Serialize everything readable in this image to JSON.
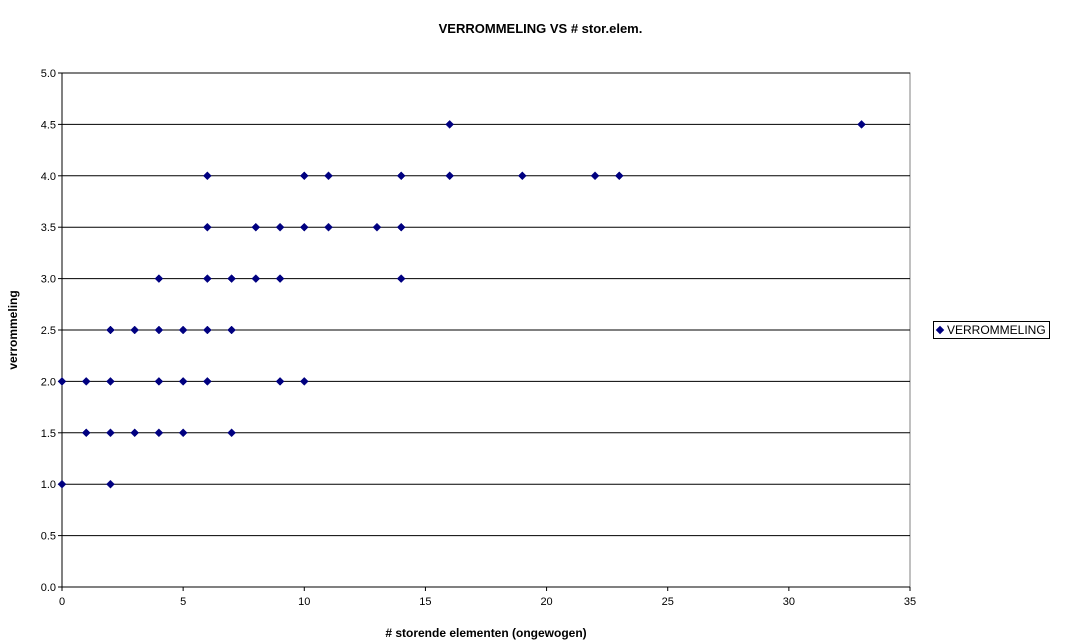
{
  "chart_data": {
    "type": "scatter",
    "title": "VERROMMELING VS # stor.elem.",
    "xlabel": "# storende elementen (ongewogen)",
    "ylabel": "verrommeling",
    "xlim": [
      0,
      35
    ],
    "ylim": [
      0,
      5
    ],
    "x_ticks": [
      "0",
      "5",
      "10",
      "15",
      "20",
      "25",
      "30",
      "35"
    ],
    "y_ticks": [
      "0.0",
      "0.5",
      "1.0",
      "1.5",
      "2.0",
      "2.5",
      "3.0",
      "3.5",
      "4.0",
      "4.5",
      "5.0"
    ],
    "grid": "horizontal",
    "legend_position": "right",
    "colors": {
      "marker": "#000080",
      "gridline": "#000000"
    },
    "series": [
      {
        "name": "VERROMMELING",
        "points": [
          [
            0,
            1.0
          ],
          [
            2,
            1.0
          ],
          [
            1,
            1.5
          ],
          [
            2,
            1.5
          ],
          [
            3,
            1.5
          ],
          [
            4,
            1.5
          ],
          [
            5,
            1.5
          ],
          [
            7,
            1.5
          ],
          [
            0,
            2.0
          ],
          [
            1,
            2.0
          ],
          [
            2,
            2.0
          ],
          [
            4,
            2.0
          ],
          [
            5,
            2.0
          ],
          [
            6,
            2.0
          ],
          [
            9,
            2.0
          ],
          [
            10,
            2.0
          ],
          [
            2,
            2.5
          ],
          [
            3,
            2.5
          ],
          [
            4,
            2.5
          ],
          [
            5,
            2.5
          ],
          [
            6,
            2.5
          ],
          [
            7,
            2.5
          ],
          [
            4,
            3.0
          ],
          [
            6,
            3.0
          ],
          [
            7,
            3.0
          ],
          [
            8,
            3.0
          ],
          [
            9,
            3.0
          ],
          [
            14,
            3.0
          ],
          [
            6,
            3.5
          ],
          [
            8,
            3.5
          ],
          [
            9,
            3.5
          ],
          [
            10,
            3.5
          ],
          [
            11,
            3.5
          ],
          [
            13,
            3.5
          ],
          [
            14,
            3.5
          ],
          [
            6,
            4.0
          ],
          [
            10,
            4.0
          ],
          [
            11,
            4.0
          ],
          [
            14,
            4.0
          ],
          [
            16,
            4.0
          ],
          [
            19,
            4.0
          ],
          [
            22,
            4.0
          ],
          [
            23,
            4.0
          ],
          [
            16,
            4.5
          ],
          [
            33,
            4.5
          ]
        ]
      }
    ]
  }
}
